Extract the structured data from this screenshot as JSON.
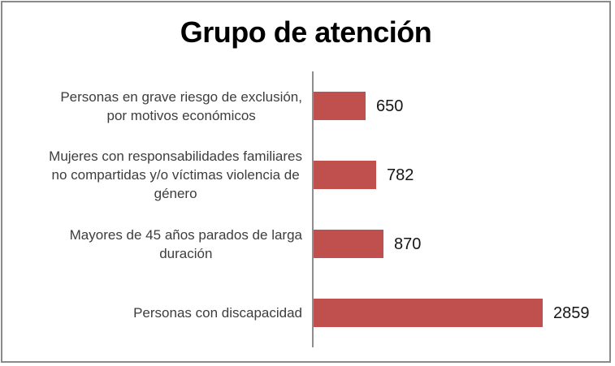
{
  "chart_data": {
    "type": "bar",
    "orientation": "horizontal",
    "title": "Grupo de atención",
    "categories": [
      "Personas en grave riesgo de exclusión, por motivos económicos",
      "Mujeres con responsabilidades familiares no compartidas y/o víctimas violencia de género",
      "Mayores de 45 años parados de larga duración",
      "Personas con discapacidad"
    ],
    "category_display_lines": [
      [
        "Personas en grave riesgo de exclusión,",
        "por motivos económicos"
      ],
      [
        "Mujeres con responsabilidades familiares",
        "no compartidas y/o víctimas violencia de",
        "género"
      ],
      [
        "Mayores de 45 años parados de larga",
        "duración"
      ],
      [
        "Personas con discapacidad"
      ]
    ],
    "values": [
      650,
      782,
      870,
      2859
    ],
    "data_labels": [
      "650",
      "782",
      "870",
      "2859"
    ],
    "data_labels_shown": true,
    "bar_color": "#BF504D",
    "axis_line_color": "#8E8E8E",
    "frame_border_color": "#8A8A8A",
    "category_text_color": "#3D3D3D",
    "value_text_color": "#161616",
    "title_color": "#000000",
    "grid": false,
    "legend": false
  }
}
